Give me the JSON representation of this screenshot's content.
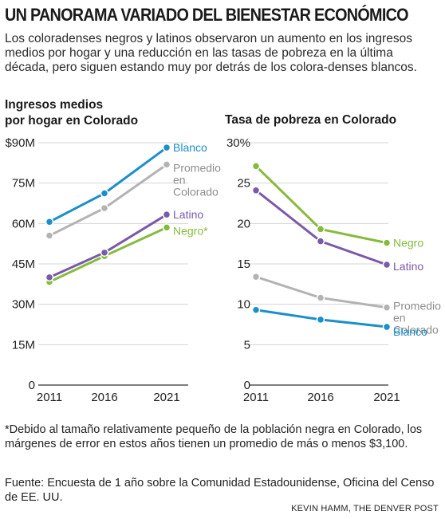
{
  "header": {
    "title": "UN PANORAMA VARIADO DEL BIENESTAR ECONÓMICO",
    "subtitle": "Los coloradenses negros y latinos observaron un aumento en los ingresos medios por hogar y una reducción en las tasas de pobreza en la última década, pero siguen estando muy por detrás de los colora-denses blancos."
  },
  "colors": {
    "blanco": "#1b8fc9",
    "promedio": "#b3b3b3",
    "latino": "#7a5aa8",
    "negro": "#85bb3c",
    "grid": "#d4d4d4",
    "axis": "#333333"
  },
  "chart_data": [
    {
      "type": "line",
      "title_lines": [
        "Ingresos medios",
        "por hogar en Colorado"
      ],
      "x": [
        "2011",
        "2016",
        "2021"
      ],
      "ylim": [
        0,
        90
      ],
      "yticks": [
        0,
        15,
        30,
        45,
        60,
        75,
        90
      ],
      "ytick_labels": [
        "0",
        "15M",
        "30M",
        "45M",
        "60M",
        "75M",
        "$90M"
      ],
      "series": [
        {
          "key": "promedio",
          "label_lines": [
            "Promedio",
            "en",
            "Colorado"
          ],
          "values": [
            55.5,
            65.7,
            81.9
          ]
        },
        {
          "key": "negro",
          "label_lines": [
            "Negro*"
          ],
          "values": [
            38.3,
            47.9,
            58.5
          ]
        },
        {
          "key": "latino",
          "label_lines": [
            "Latino"
          ],
          "values": [
            40.0,
            49.2,
            63.3
          ]
        },
        {
          "key": "blanco",
          "label_lines": [
            "Blanco"
          ],
          "values": [
            60.6,
            71.2,
            88.2
          ]
        }
      ]
    },
    {
      "type": "line",
      "title_lines": [
        "Tasa de pobreza en Colorado"
      ],
      "x": [
        "2011",
        "2016",
        "2021"
      ],
      "ylim": [
        0,
        30
      ],
      "yticks": [
        0,
        5,
        10,
        15,
        20,
        25,
        30
      ],
      "ytick_labels": [
        "0",
        "5",
        "10",
        "15",
        "20",
        "25",
        "30%"
      ],
      "series": [
        {
          "key": "promedio",
          "label_lines": [
            "Promedio",
            "en",
            "Colorado"
          ],
          "values": [
            13.4,
            10.8,
            9.6
          ]
        },
        {
          "key": "blanco",
          "label_lines": [
            "Blanco"
          ],
          "values": [
            9.3,
            8.1,
            7.2
          ]
        },
        {
          "key": "latino",
          "label_lines": [
            "Latino"
          ],
          "values": [
            24.1,
            17.8,
            14.9
          ]
        },
        {
          "key": "negro",
          "label_lines": [
            "Negro"
          ],
          "values": [
            27.1,
            19.3,
            17.6
          ]
        }
      ]
    }
  ],
  "footnote": "*Debido al tamaño relativamente pequeño de la población negra en Colorado, los márgenes de error en estos años tienen un promedio de más o menos $3,100.",
  "source": "Fuente: Encuesta de 1 año sobre la Comunidad Estadounidense, Oficina del Censo de EE. UU.",
  "credit": "KEVIN HAMM, THE DENVER POST"
}
